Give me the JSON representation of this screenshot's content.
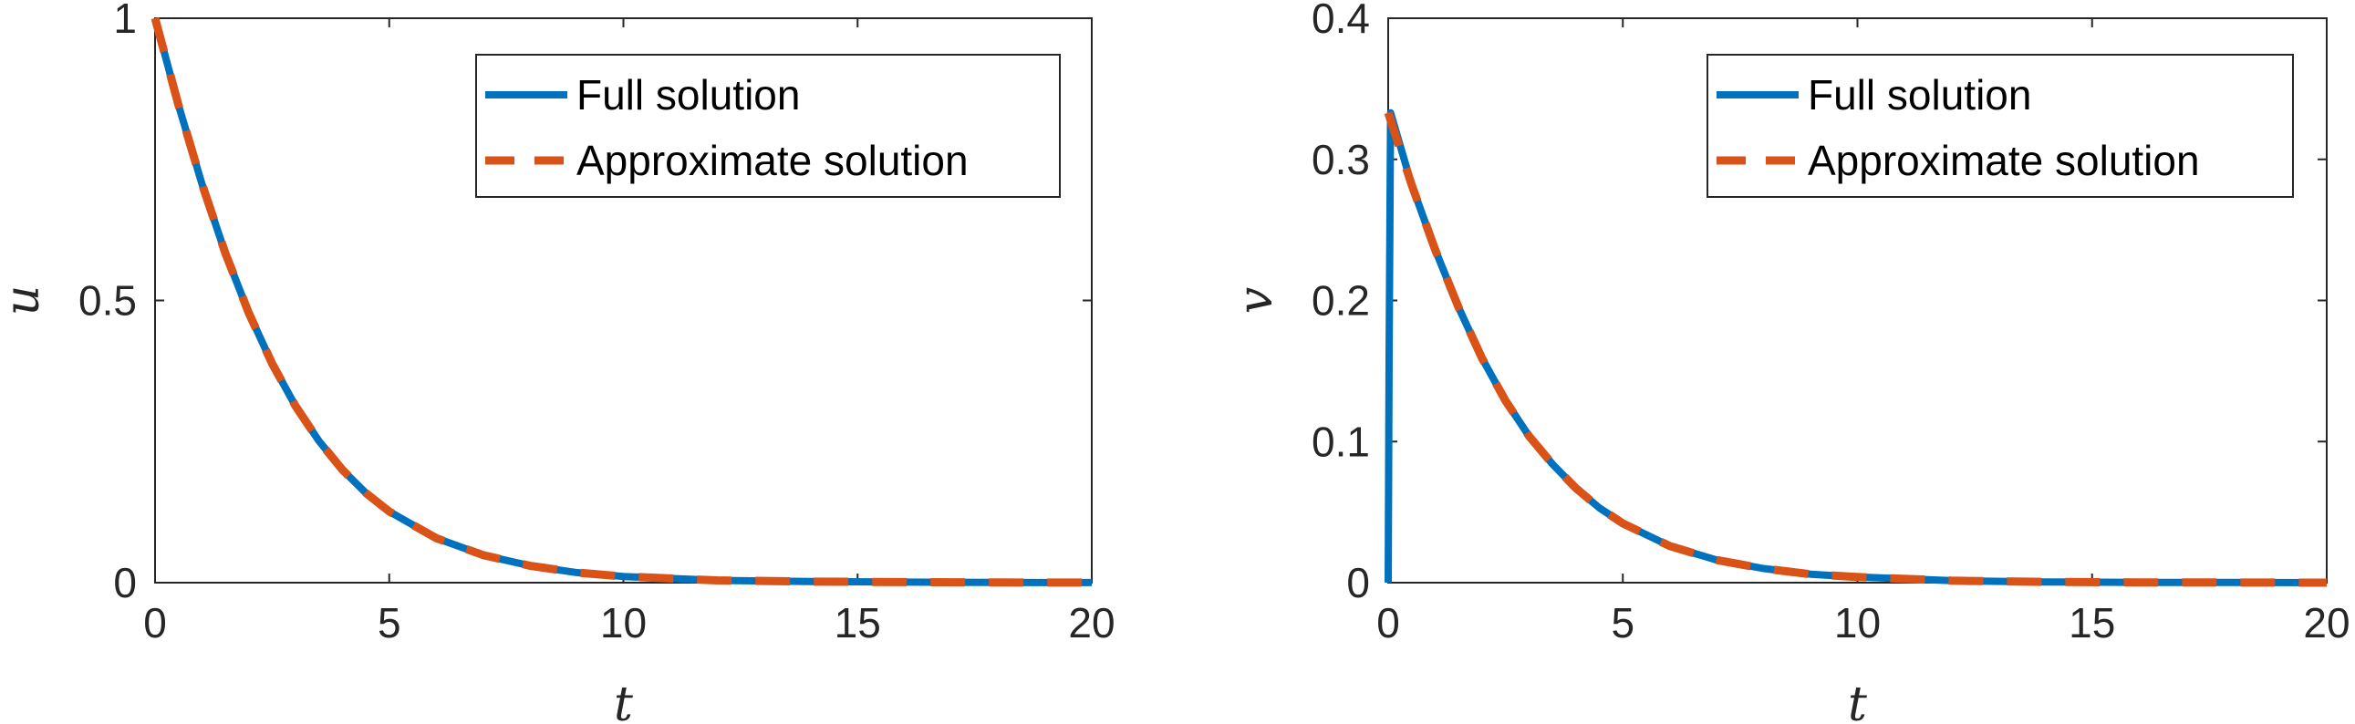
{
  "colors": {
    "full": "#0072BD",
    "approx": "#D95319",
    "axis": "#262626",
    "background": "#ffffff"
  },
  "chart_data": [
    {
      "type": "line",
      "xlabel": "t",
      "ylabel": "u",
      "xlim": [
        0,
        20
      ],
      "ylim": [
        0,
        1
      ],
      "xticks": [
        0,
        5,
        10,
        15,
        20
      ],
      "yticks": [
        0,
        0.5,
        1
      ],
      "xtick_labels": [
        "0",
        "5",
        "10",
        "15",
        "20"
      ],
      "ytick_labels": [
        "0",
        "0.5",
        "1"
      ],
      "legend_placement": "top-right",
      "series": [
        {
          "name": "Full solution",
          "style": "solid",
          "x": [
            0,
            0.5,
            1,
            1.5,
            2,
            2.5,
            3,
            3.5,
            4,
            4.5,
            5,
            6,
            7,
            8,
            9,
            10,
            12,
            14,
            16,
            18,
            20
          ],
          "y": [
            1,
            0.846,
            0.707,
            0.584,
            0.478,
            0.388,
            0.313,
            0.251,
            0.2,
            0.159,
            0.126,
            0.079,
            0.049,
            0.03,
            0.018,
            0.011,
            0.004,
            0.002,
            0.001,
            0.0003,
            0.0001
          ]
        },
        {
          "name": "Approximate solution",
          "style": "dashed",
          "x": [
            0,
            0.5,
            1,
            1.5,
            2,
            2.5,
            3,
            3.5,
            4,
            4.5,
            5,
            6,
            7,
            8,
            9,
            10,
            12,
            14,
            16,
            18,
            20
          ],
          "y": [
            1,
            0.846,
            0.707,
            0.584,
            0.478,
            0.388,
            0.313,
            0.251,
            0.2,
            0.159,
            0.126,
            0.079,
            0.049,
            0.03,
            0.018,
            0.011,
            0.004,
            0.002,
            0.001,
            0.0003,
            0.0001
          ]
        }
      ]
    },
    {
      "type": "line",
      "xlabel": "t",
      "ylabel": "v",
      "xlim": [
        0,
        20
      ],
      "ylim": [
        0,
        0.4
      ],
      "xticks": [
        0,
        5,
        10,
        15,
        20
      ],
      "yticks": [
        0,
        0.1,
        0.2,
        0.3,
        0.4
      ],
      "xtick_labels": [
        "0",
        "5",
        "10",
        "15",
        "20"
      ],
      "ytick_labels": [
        "0",
        "0.1",
        "0.2",
        "0.3",
        "0.4"
      ],
      "legend_placement": "top-right",
      "series": [
        {
          "name": "Full solution",
          "style": "solid",
          "x": [
            0,
            0.02,
            0.05,
            0.5,
            1,
            1.5,
            2,
            2.5,
            3,
            3.5,
            4,
            4.5,
            5,
            6,
            7,
            8,
            9,
            10,
            12,
            14,
            16,
            18,
            20
          ],
          "y": [
            0,
            0.16,
            0.333,
            0.282,
            0.236,
            0.195,
            0.159,
            0.129,
            0.104,
            0.084,
            0.067,
            0.053,
            0.042,
            0.026,
            0.016,
            0.01,
            0.006,
            0.004,
            0.0014,
            0.0005,
            0.0002,
            0.0001,
            0
          ]
        },
        {
          "name": "Approximate solution",
          "style": "dashed",
          "x": [
            0,
            0.5,
            1,
            1.5,
            2,
            2.5,
            3,
            3.5,
            4,
            4.5,
            5,
            6,
            7,
            8,
            9,
            10,
            12,
            14,
            16,
            18,
            20
          ],
          "y": [
            0.333,
            0.282,
            0.236,
            0.195,
            0.159,
            0.129,
            0.104,
            0.084,
            0.067,
            0.053,
            0.042,
            0.026,
            0.016,
            0.01,
            0.006,
            0.004,
            0.0014,
            0.0005,
            0.0002,
            0.0001,
            0
          ]
        }
      ]
    }
  ]
}
